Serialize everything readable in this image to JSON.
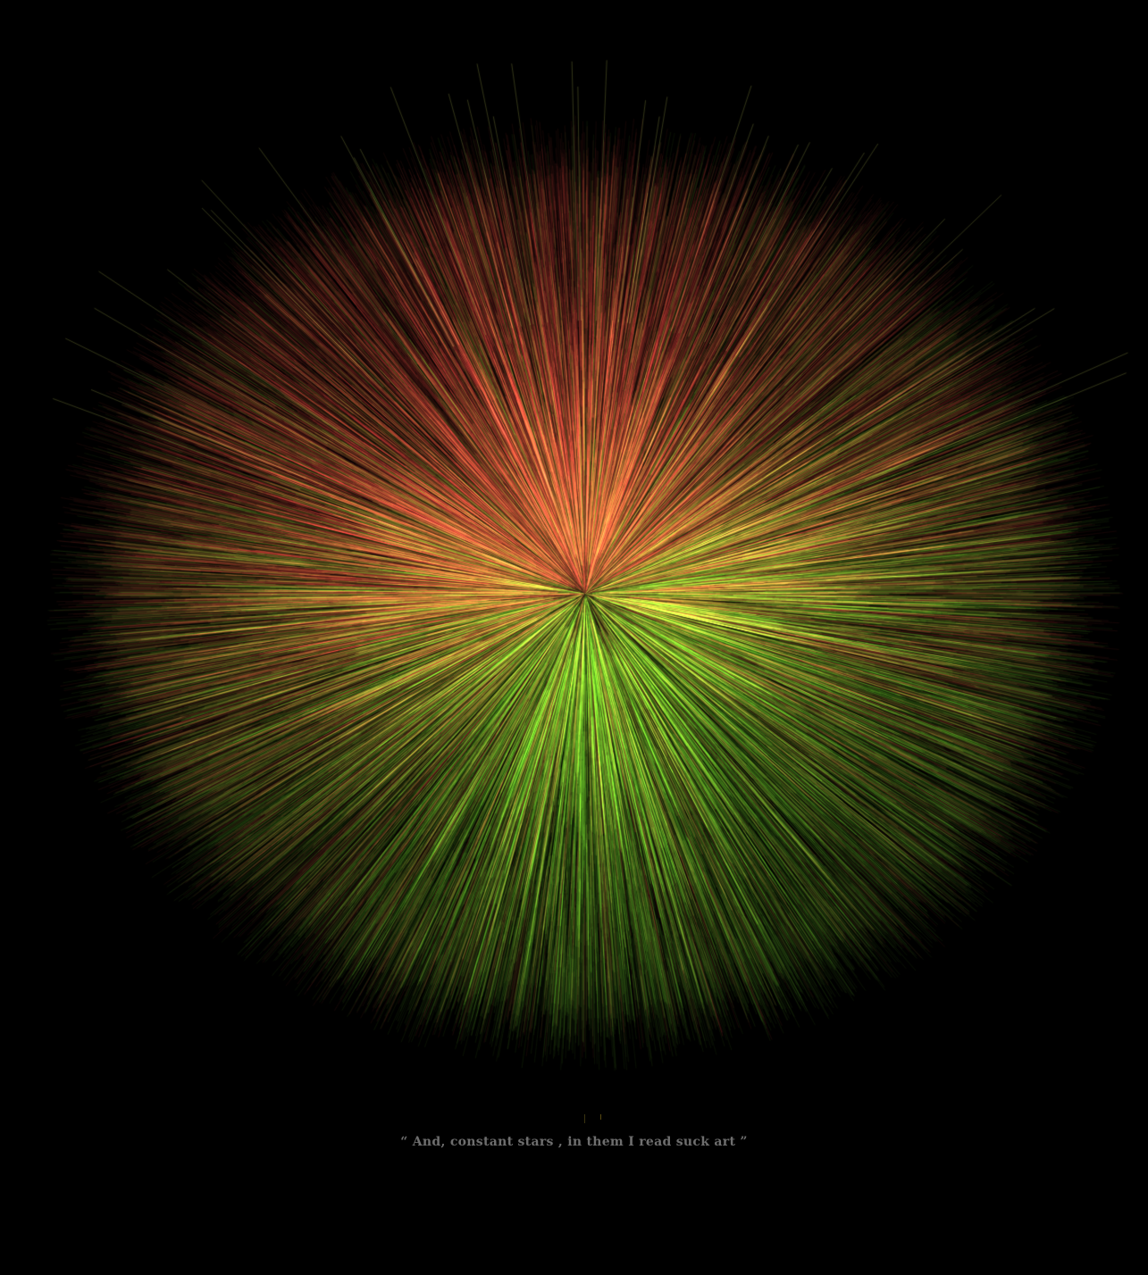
{
  "artwork": {
    "description_colors": {
      "background": "#000000",
      "red": "#ff4a4a",
      "green": "#4aff2a",
      "yellow": "#e8d070"
    },
    "caption": "“ And, constant stars , in them I read suck art ”"
  }
}
